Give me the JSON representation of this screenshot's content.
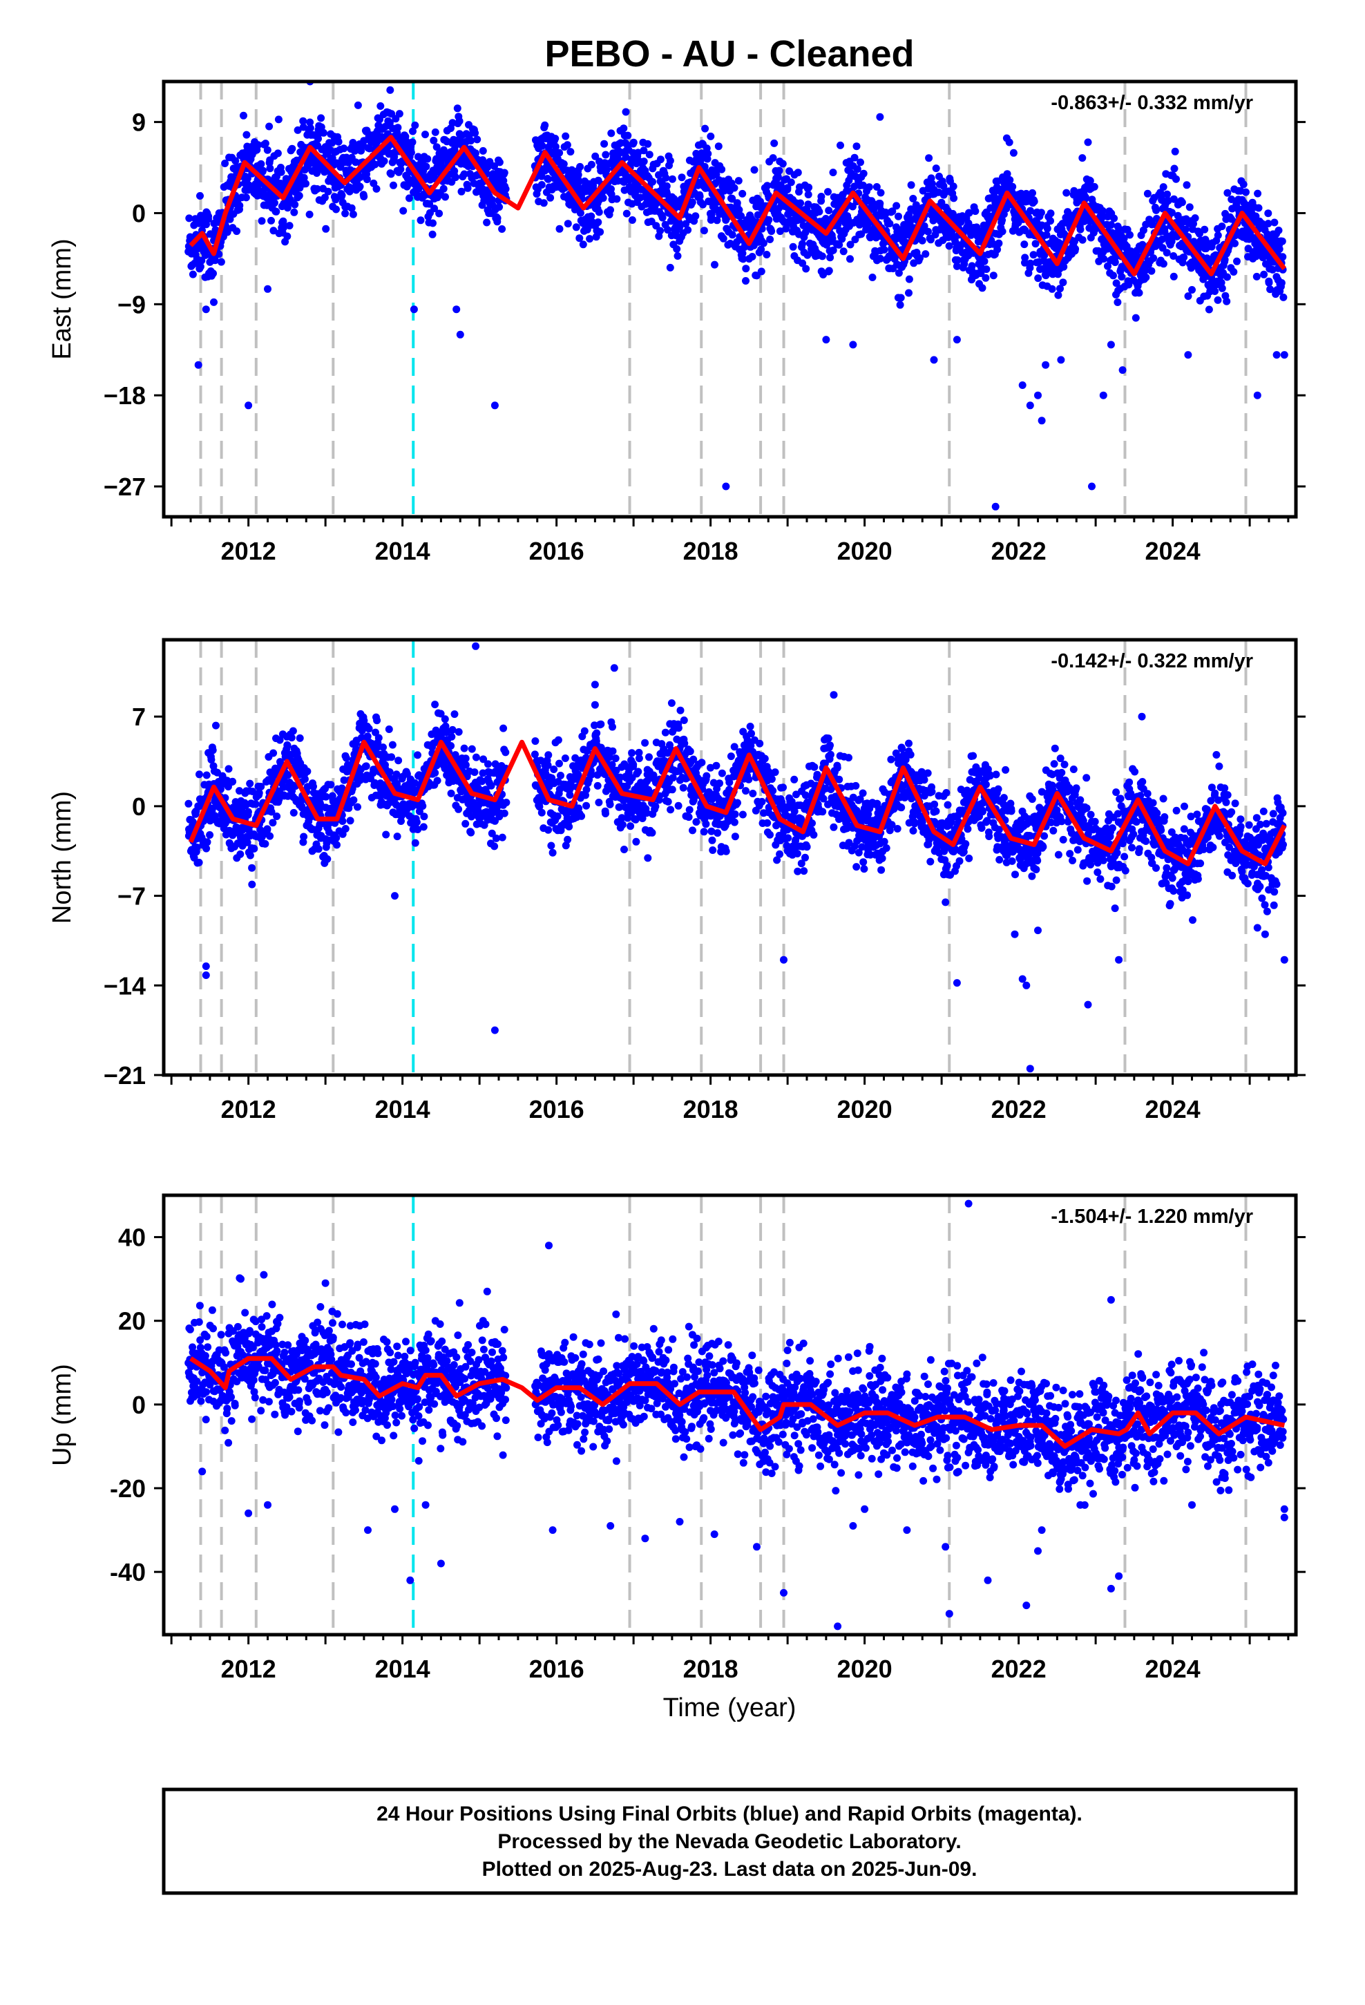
{
  "title": "PEBO  - AU - Cleaned",
  "caption": {
    "lines": [
      "24 Hour Positions Using Final Orbits (blue) and Rapid Orbits (magenta).",
      "Processed by the Nevada Geodetic Laboratory.",
      "Plotted on 2025-Aug-23. Last data on 2025-Jun-09."
    ]
  },
  "colors": {
    "points": "#0000ff",
    "model": "#ff0000",
    "equipment_change": "#c0c0c0",
    "earthquake": "#00e5ee",
    "frame": "#000000"
  },
  "chart_data": [
    {
      "type": "scatter",
      "component": "east",
      "ylabel": "East (mm)",
      "xlabel": "",
      "rate_text": "-0.863+/- 0.332 mm/yr",
      "xlim": [
        2010.9,
        2025.6
      ],
      "ylim": [
        -30,
        13
      ],
      "yticks": [
        9,
        0,
        -9,
        -18,
        -27
      ],
      "ytick_labels": [
        "9",
        "0",
        "−9",
        "−18",
        "−27"
      ],
      "xticks": [
        2012,
        2014,
        2016,
        2018,
        2020,
        2022,
        2024
      ],
      "xtick_labels": [
        "2012",
        "2014",
        "2016",
        "2018",
        "2020",
        "2022",
        "2024"
      ],
      "grid": false,
      "trend": -0.863,
      "model_keypoints": [
        [
          2011.25,
          -3.2
        ],
        [
          2011.4,
          -2.0
        ],
        [
          2011.55,
          -4.0
        ],
        [
          2011.7,
          0.0
        ],
        [
          2011.95,
          5.0
        ],
        [
          2012.45,
          1.5
        ],
        [
          2012.8,
          6.5
        ],
        [
          2013.25,
          3.0
        ],
        [
          2013.85,
          7.5
        ],
        [
          2014.35,
          2.0
        ],
        [
          2014.8,
          6.5
        ],
        [
          2015.2,
          2.0
        ],
        [
          2015.5,
          0.5
        ],
        [
          2015.85,
          6.0
        ],
        [
          2016.35,
          0.5
        ],
        [
          2016.85,
          5.0
        ],
        [
          2017.6,
          -0.5
        ],
        [
          2017.85,
          4.5
        ],
        [
          2018.5,
          -3.0
        ],
        [
          2018.85,
          2.0
        ],
        [
          2019.5,
          -2.0
        ],
        [
          2019.85,
          2.0
        ],
        [
          2020.5,
          -4.5
        ],
        [
          2020.85,
          1.2
        ],
        [
          2021.5,
          -4.0
        ],
        [
          2021.85,
          2.0
        ],
        [
          2022.5,
          -5.0
        ],
        [
          2022.85,
          1.0
        ],
        [
          2023.5,
          -6.0
        ],
        [
          2023.9,
          0.0
        ],
        [
          2024.5,
          -6.0
        ],
        [
          2024.9,
          0.0
        ],
        [
          2025.45,
          -5.5
        ]
      ],
      "outliers": [
        [
          2011.35,
          -15
        ],
        [
          2011.45,
          -9.5
        ],
        [
          2011.55,
          -8.8
        ],
        [
          2012.0,
          -19
        ],
        [
          2012.25,
          -7.5
        ],
        [
          2012.8,
          13
        ],
        [
          2014.15,
          -9.5
        ],
        [
          2014.7,
          -9.5
        ],
        [
          2014.75,
          -12
        ],
        [
          2015.2,
          -19
        ],
        [
          2016.9,
          10
        ],
        [
          2018.2,
          -27
        ],
        [
          2019.5,
          -12.5
        ],
        [
          2019.85,
          -13
        ],
        [
          2020.2,
          9.5
        ],
        [
          2020.9,
          -14.5
        ],
        [
          2021.2,
          -12.5
        ],
        [
          2021.7,
          -29
        ],
        [
          2022.05,
          -17
        ],
        [
          2022.15,
          -19
        ],
        [
          2022.25,
          -18
        ],
        [
          2022.3,
          -20.5
        ],
        [
          2022.35,
          -15
        ],
        [
          2022.55,
          -14.5
        ],
        [
          2022.9,
          7
        ],
        [
          2022.95,
          -27
        ],
        [
          2023.1,
          -18
        ],
        [
          2023.2,
          -13
        ],
        [
          2023.35,
          -15.5
        ],
        [
          2024.2,
          -14
        ],
        [
          2025.1,
          -18
        ],
        [
          2025.35,
          -14
        ],
        [
          2025.45,
          -14
        ]
      ]
    },
    {
      "type": "scatter",
      "component": "north",
      "ylabel": "North (mm)",
      "xlabel": "",
      "rate_text": "-0.142+/- 0.322 mm/yr",
      "xlim": [
        2010.9,
        2025.6
      ],
      "ylim": [
        -21,
        13
      ],
      "yticks": [
        7,
        0,
        -7,
        -14,
        -21
      ],
      "ytick_labels": [
        "7",
        "0",
        "−7",
        "−14",
        "−21"
      ],
      "xticks": [
        2012,
        2014,
        2016,
        2018,
        2020,
        2022,
        2024
      ],
      "xtick_labels": [
        "2012",
        "2014",
        "2016",
        "2018",
        "2020",
        "2022",
        "2024"
      ],
      "grid": false,
      "trend": -0.142,
      "model_keypoints": [
        [
          2011.25,
          -2.8
        ],
        [
          2011.55,
          1.5
        ],
        [
          2011.8,
          -1.0
        ],
        [
          2012.1,
          -1.5
        ],
        [
          2012.5,
          3.5
        ],
        [
          2012.9,
          -1.0
        ],
        [
          2013.15,
          -1.0
        ],
        [
          2013.5,
          5.0
        ],
        [
          2013.9,
          1.0
        ],
        [
          2014.2,
          0.5
        ],
        [
          2014.5,
          5.0
        ],
        [
          2014.9,
          1.0
        ],
        [
          2015.2,
          0.5
        ],
        [
          2015.55,
          5.0
        ],
        [
          2015.9,
          0.5
        ],
        [
          2016.2,
          0.0
        ],
        [
          2016.5,
          4.5
        ],
        [
          2016.85,
          1.0
        ],
        [
          2017.25,
          0.5
        ],
        [
          2017.55,
          4.5
        ],
        [
          2017.95,
          0.0
        ],
        [
          2018.2,
          -0.5
        ],
        [
          2018.5,
          4.0
        ],
        [
          2018.9,
          -1.0
        ],
        [
          2019.2,
          -2.0
        ],
        [
          2019.5,
          3.0
        ],
        [
          2019.9,
          -1.5
        ],
        [
          2020.2,
          -2.0
        ],
        [
          2020.5,
          3.0
        ],
        [
          2020.9,
          -2.0
        ],
        [
          2021.15,
          -3.0
        ],
        [
          2021.5,
          1.5
        ],
        [
          2021.9,
          -2.5
        ],
        [
          2022.2,
          -3.0
        ],
        [
          2022.5,
          1.0
        ],
        [
          2022.85,
          -2.5
        ],
        [
          2023.2,
          -3.5
        ],
        [
          2023.55,
          0.5
        ],
        [
          2023.9,
          -3.5
        ],
        [
          2024.2,
          -4.5
        ],
        [
          2024.55,
          0.0
        ],
        [
          2024.9,
          -3.5
        ],
        [
          2025.2,
          -4.5
        ],
        [
          2025.45,
          -1.5
        ]
      ],
      "outliers": [
        [
          2011.45,
          -12.5
        ],
        [
          2011.45,
          -13.2
        ],
        [
          2013.9,
          -7
        ],
        [
          2015.2,
          -17.5
        ],
        [
          2014.95,
          12.5
        ],
        [
          2016.75,
          10.8
        ],
        [
          2016.5,
          9.5
        ],
        [
          2018.95,
          -12
        ],
        [
          2019.6,
          8.7
        ],
        [
          2021.2,
          -13.8
        ],
        [
          2021.05,
          -7.5
        ],
        [
          2021.95,
          -10
        ],
        [
          2022.05,
          -13.5
        ],
        [
          2022.1,
          -14
        ],
        [
          2022.15,
          -20.5
        ],
        [
          2022.25,
          -9.7
        ],
        [
          2022.9,
          -15.5
        ],
        [
          2023.3,
          -12
        ],
        [
          2023.6,
          7
        ],
        [
          2025.1,
          -9.5
        ],
        [
          2025.2,
          -10
        ],
        [
          2025.45,
          -12
        ]
      ]
    },
    {
      "type": "scatter",
      "component": "up",
      "ylabel": "Up (mm)",
      "xlabel": "Time (year)",
      "rate_text": "-1.504+/- 1.220 mm/yr",
      "xlim": [
        2010.9,
        2025.6
      ],
      "ylim": [
        -55,
        50
      ],
      "yticks": [
        40,
        20,
        0,
        -20,
        -40
      ],
      "ytick_labels": [
        "40",
        "20",
        "0",
        "-20",
        "-40"
      ],
      "xticks": [
        2012,
        2014,
        2016,
        2018,
        2020,
        2022,
        2024
      ],
      "xtick_labels": [
        "2012",
        "2014",
        "2016",
        "2018",
        "2020",
        "2022",
        "2024"
      ],
      "grid": false,
      "trend": -1.504,
      "model_keypoints": [
        [
          2011.25,
          11
        ],
        [
          2011.5,
          8
        ],
        [
          2011.7,
          4
        ],
        [
          2011.75,
          8
        ],
        [
          2012.0,
          11
        ],
        [
          2012.3,
          11
        ],
        [
          2012.55,
          6
        ],
        [
          2012.85,
          9
        ],
        [
          2013.1,
          9
        ],
        [
          2013.2,
          7
        ],
        [
          2013.5,
          6
        ],
        [
          2013.7,
          2
        ],
        [
          2014.0,
          5
        ],
        [
          2014.2,
          4
        ],
        [
          2014.3,
          7
        ],
        [
          2014.5,
          7
        ],
        [
          2014.7,
          2
        ],
        [
          2015.0,
          5
        ],
        [
          2015.3,
          6
        ],
        [
          2015.55,
          4
        ],
        [
          2015.75,
          1
        ],
        [
          2016.0,
          4
        ],
        [
          2016.3,
          4
        ],
        [
          2016.6,
          0
        ],
        [
          2016.95,
          5
        ],
        [
          2017.3,
          5
        ],
        [
          2017.6,
          0
        ],
        [
          2017.85,
          3
        ],
        [
          2018.3,
          3
        ],
        [
          2018.65,
          -6
        ],
        [
          2018.9,
          -3
        ],
        [
          2018.95,
          0
        ],
        [
          2019.3,
          0
        ],
        [
          2019.65,
          -5
        ],
        [
          2020.0,
          -2
        ],
        [
          2020.3,
          -2
        ],
        [
          2020.65,
          -5
        ],
        [
          2020.95,
          -3
        ],
        [
          2021.3,
          -3
        ],
        [
          2021.65,
          -6
        ],
        [
          2022.0,
          -5
        ],
        [
          2022.3,
          -5
        ],
        [
          2022.6,
          -10
        ],
        [
          2022.95,
          -6
        ],
        [
          2023.3,
          -7
        ],
        [
          2023.4,
          -6
        ],
        [
          2023.55,
          -2
        ],
        [
          2023.7,
          -7
        ],
        [
          2024.0,
          -2
        ],
        [
          2024.3,
          -2
        ],
        [
          2024.6,
          -7
        ],
        [
          2024.95,
          -3
        ],
        [
          2025.45,
          -5
        ]
      ],
      "outliers": [
        [
          2011.4,
          -16
        ],
        [
          2011.9,
          30
        ],
        [
          2012.0,
          -26
        ],
        [
          2012.2,
          31
        ],
        [
          2012.25,
          -24
        ],
        [
          2013.0,
          29
        ],
        [
          2013.55,
          -30
        ],
        [
          2013.9,
          -25
        ],
        [
          2014.1,
          -42
        ],
        [
          2014.3,
          -24
        ],
        [
          2014.5,
          -38
        ],
        [
          2015.1,
          27
        ],
        [
          2015.9,
          38
        ],
        [
          2015.95,
          -30
        ],
        [
          2016.7,
          -29
        ],
        [
          2017.15,
          -32
        ],
        [
          2017.6,
          -28
        ],
        [
          2018.05,
          -31
        ],
        [
          2018.6,
          -34
        ],
        [
          2018.95,
          -45
        ],
        [
          2019.65,
          -53
        ],
        [
          2019.85,
          -29
        ],
        [
          2020.0,
          -25
        ],
        [
          2020.55,
          -30
        ],
        [
          2021.05,
          -34
        ],
        [
          2021.1,
          -50
        ],
        [
          2021.35,
          48
        ],
        [
          2021.6,
          -42
        ],
        [
          2022.1,
          -48
        ],
        [
          2022.25,
          -35
        ],
        [
          2022.3,
          -30
        ],
        [
          2022.8,
          -24
        ],
        [
          2023.2,
          25
        ],
        [
          2023.2,
          -44
        ],
        [
          2023.3,
          -41
        ],
        [
          2024.25,
          -24
        ],
        [
          2025.45,
          -25
        ],
        [
          2025.45,
          -27
        ]
      ]
    }
  ],
  "equipment_changes": [
    2011.38,
    2011.65,
    2012.1,
    2013.1,
    2016.95,
    2017.88,
    2018.65,
    2018.95,
    2021.1,
    2023.38,
    2024.95
  ],
  "earthquakes": [
    2014.14
  ],
  "data_gap": [
    2015.35,
    2015.72
  ],
  "data_span": [
    2011.22,
    2025.44
  ]
}
